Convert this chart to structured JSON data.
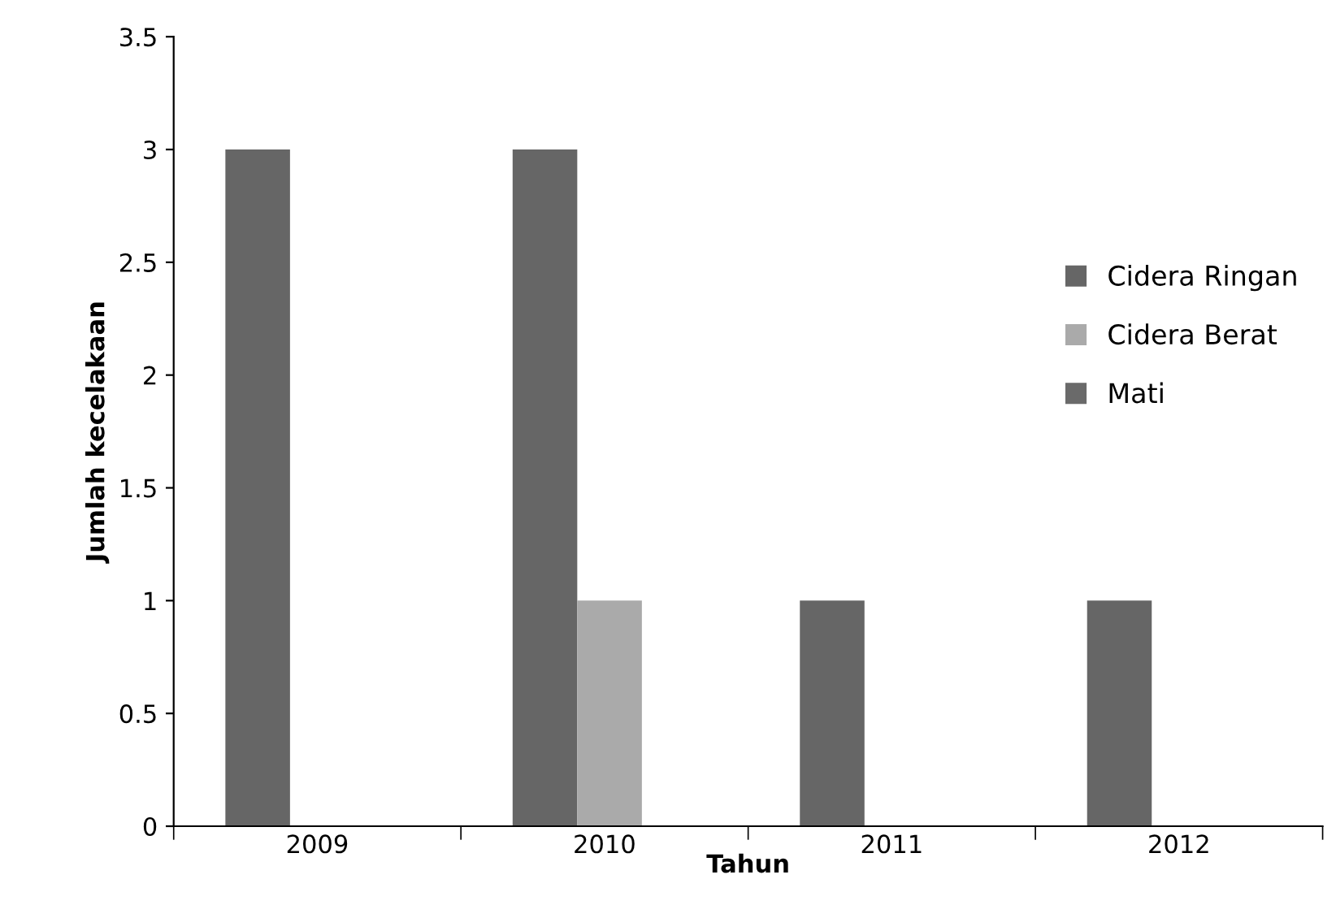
{
  "chart_data": {
    "type": "bar",
    "xlabel": "Tahun",
    "ylabel": "Jumlah kecelakaan",
    "categories": [
      "2009",
      "2010",
      "2011",
      "2012"
    ],
    "series": [
      {
        "name": "Cidera Ringan",
        "color": "#666666",
        "values": [
          3,
          3,
          1,
          1
        ]
      },
      {
        "name": "Cidera Berat",
        "color": "#aaaaaa",
        "values": [
          0,
          1,
          0,
          0
        ]
      },
      {
        "name": "Mati",
        "color": "#6a6a6a",
        "values": [
          0,
          0,
          0,
          0
        ]
      }
    ],
    "ylim": [
      0,
      3.5
    ],
    "yticks": [
      0,
      0.5,
      1,
      1.5,
      2,
      2.5,
      3,
      3.5
    ],
    "grid": false,
    "legend": "right"
  }
}
